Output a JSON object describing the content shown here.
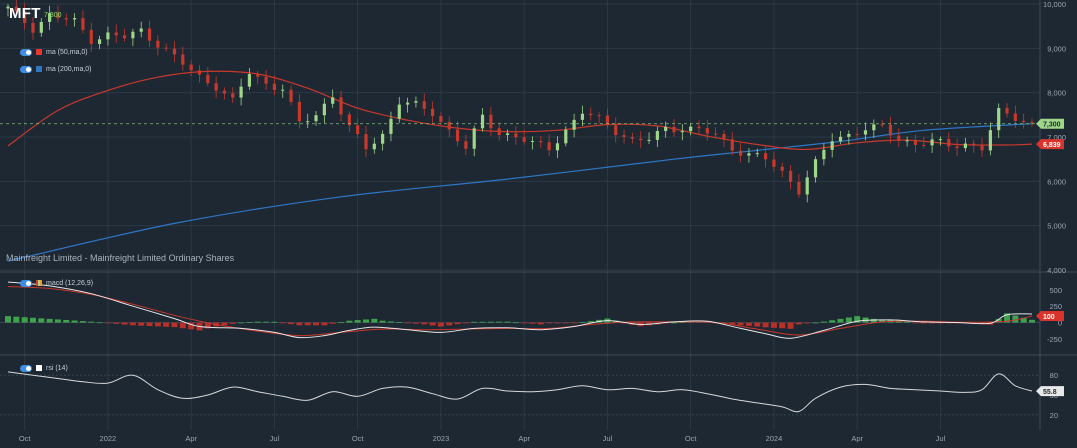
{
  "ticker": "MFT",
  "ticker_price": "7,300",
  "subtitle": "Mainfreight Limited - Mainfreight Limited Ordinary Shares",
  "indicators": {
    "ma50": {
      "label": "ma (50,ma,0)",
      "color": "#e8372e"
    },
    "ma200": {
      "label": "ma (200,ma,0)",
      "color": "#2f77c4"
    },
    "macd": {
      "label": "macd (12,26,9)"
    },
    "rsi": {
      "label": "rsi (14)"
    }
  },
  "colors": {
    "up": "#9fd687",
    "down": "#c8382b",
    "ma50": "#c8382b",
    "ma200": "#2f77c4"
  },
  "chart_data": [
    {
      "type": "candlestick",
      "title": "MFT",
      "x_tick_labels": [
        "Oct",
        "2022",
        "Apr",
        "Jul",
        "Oct",
        "2023",
        "Apr",
        "Jul",
        "Oct",
        "2024",
        "Apr",
        "Jul"
      ],
      "y_tick_labels": [
        "10,000",
        "9,000",
        "8,000",
        "7,000",
        "6,000",
        "5,000",
        "4,000"
      ],
      "ylim": [
        4000,
        10000
      ],
      "last_price_label": "7,300",
      "ma50_label": "6,839",
      "price_path": [
        [
          0,
          9900
        ],
        [
          3,
          9450
        ],
        [
          5,
          9750
        ],
        [
          8,
          9600
        ],
        [
          10,
          9200
        ],
        [
          12,
          9300
        ],
        [
          14,
          9250
        ],
        [
          16,
          9400
        ],
        [
          18,
          9100
        ],
        [
          21,
          8650
        ],
        [
          23,
          8350
        ],
        [
          25,
          8150
        ],
        [
          27,
          7800
        ],
        [
          29,
          8450
        ],
        [
          31,
          8200
        ],
        [
          33,
          8100
        ],
        [
          35,
          7300
        ],
        [
          37,
          7500
        ],
        [
          39,
          7950
        ],
        [
          41,
          7200
        ],
        [
          43,
          6750
        ],
        [
          45,
          7050
        ],
        [
          47,
          7800
        ],
        [
          49,
          7700
        ],
        [
          51,
          7550
        ],
        [
          53,
          7150
        ],
        [
          55,
          6750
        ],
        [
          57,
          7450
        ],
        [
          59,
          7100
        ],
        [
          61,
          7000
        ],
        [
          63,
          6850
        ],
        [
          65,
          6750
        ],
        [
          67,
          7150
        ],
        [
          69,
          7550
        ],
        [
          71,
          7400
        ],
        [
          73,
          7150
        ],
        [
          75,
          6900
        ],
        [
          77,
          6950
        ],
        [
          79,
          7200
        ],
        [
          81,
          7200
        ],
        [
          83,
          7150
        ],
        [
          85,
          7050
        ],
        [
          87,
          6750
        ],
        [
          89,
          6600
        ],
        [
          91,
          6500
        ],
        [
          93,
          6200
        ],
        [
          95,
          5800
        ],
        [
          97,
          6400
        ],
        [
          99,
          6950
        ],
        [
          101,
          7050
        ],
        [
          103,
          7200
        ],
        [
          105,
          7200
        ],
        [
          107,
          6950
        ],
        [
          109,
          6850
        ],
        [
          111,
          6900
        ],
        [
          113,
          6800
        ],
        [
          115,
          6850
        ],
        [
          117,
          6750
        ],
        [
          119,
          7550
        ],
        [
          121,
          7450
        ],
        [
          123,
          7300
        ]
      ],
      "ma50": [
        [
          0,
          6800
        ],
        [
          6,
          7600
        ],
        [
          12,
          8050
        ],
        [
          18,
          8350
        ],
        [
          24,
          8480
        ],
        [
          30,
          8420
        ],
        [
          36,
          8100
        ],
        [
          42,
          7650
        ],
        [
          48,
          7380
        ],
        [
          54,
          7200
        ],
        [
          60,
          7120
        ],
        [
          66,
          7150
        ],
        [
          72,
          7280
        ],
        [
          78,
          7250
        ],
        [
          84,
          7020
        ],
        [
          90,
          6830
        ],
        [
          96,
          6720
        ],
        [
          102,
          6870
        ],
        [
          108,
          6930
        ],
        [
          114,
          6830
        ],
        [
          120,
          6820
        ],
        [
          123,
          6839
        ]
      ],
      "ma200": [
        [
          0,
          4200
        ],
        [
          20,
          5050
        ],
        [
          40,
          5650
        ],
        [
          60,
          6050
        ],
        [
          80,
          6500
        ],
        [
          90,
          6700
        ],
        [
          100,
          6900
        ],
        [
          110,
          7150
        ],
        [
          123,
          7300
        ]
      ]
    },
    {
      "type": "bar",
      "title": "macd (12,26,9)",
      "y_tick_labels": [
        "500",
        "250",
        "0",
        "-250"
      ],
      "ylim": [
        -450,
        650
      ],
      "last_value_label": "100",
      "macd_line": [
        [
          0,
          620
        ],
        [
          5,
          560
        ],
        [
          10,
          440
        ],
        [
          15,
          250
        ],
        [
          20,
          60
        ],
        [
          23,
          -60
        ],
        [
          28,
          -90
        ],
        [
          32,
          -150
        ],
        [
          35,
          -230
        ],
        [
          38,
          -200
        ],
        [
          41,
          -120
        ],
        [
          44,
          -70
        ],
        [
          48,
          -110
        ],
        [
          52,
          -150
        ],
        [
          56,
          -90
        ],
        [
          60,
          -80
        ],
        [
          64,
          -110
        ],
        [
          68,
          -60
        ],
        [
          72,
          30
        ],
        [
          76,
          -30
        ],
        [
          80,
          10
        ],
        [
          84,
          20
        ],
        [
          88,
          -90
        ],
        [
          91,
          -170
        ],
        [
          94,
          -240
        ],
        [
          98,
          -120
        ],
        [
          102,
          20
        ],
        [
          106,
          40
        ],
        [
          110,
          10
        ],
        [
          114,
          0
        ],
        [
          118,
          -10
        ],
        [
          120,
          120
        ],
        [
          123,
          130
        ]
      ],
      "signal_line": [
        [
          0,
          550
        ],
        [
          5,
          520
        ],
        [
          10,
          430
        ],
        [
          15,
          280
        ],
        [
          20,
          110
        ],
        [
          25,
          -30
        ],
        [
          30,
          -130
        ],
        [
          35,
          -200
        ],
        [
          40,
          -150
        ],
        [
          45,
          -100
        ],
        [
          50,
          -110
        ],
        [
          55,
          -100
        ],
        [
          60,
          -90
        ],
        [
          65,
          -90
        ],
        [
          70,
          -30
        ],
        [
          75,
          10
        ],
        [
          80,
          10
        ],
        [
          85,
          0
        ],
        [
          90,
          -100
        ],
        [
          95,
          -190
        ],
        [
          100,
          -90
        ],
        [
          105,
          10
        ],
        [
          110,
          20
        ],
        [
          115,
          5
        ],
        [
          120,
          20
        ],
        [
          123,
          100
        ]
      ]
    },
    {
      "type": "line",
      "title": "rsi (14)",
      "y_tick_labels": [
        "80",
        "50",
        "20"
      ],
      "ylim": [
        0,
        100
      ],
      "last_value_label": "55.8",
      "rsi_line": [
        [
          0,
          85
        ],
        [
          3,
          80
        ],
        [
          6,
          75
        ],
        [
          9,
          70
        ],
        [
          12,
          68
        ],
        [
          15,
          80
        ],
        [
          18,
          58
        ],
        [
          21,
          45
        ],
        [
          24,
          50
        ],
        [
          27,
          62
        ],
        [
          30,
          55
        ],
        [
          33,
          48
        ],
        [
          36,
          42
        ],
        [
          39,
          55
        ],
        [
          42,
          48
        ],
        [
          45,
          60
        ],
        [
          48,
          62
        ],
        [
          51,
          52
        ],
        [
          54,
          44
        ],
        [
          57,
          60
        ],
        [
          60,
          56
        ],
        [
          63,
          55
        ],
        [
          66,
          58
        ],
        [
          69,
          64
        ],
        [
          72,
          58
        ],
        [
          75,
          60
        ],
        [
          78,
          55
        ],
        [
          81,
          58
        ],
        [
          84,
          52
        ],
        [
          87,
          44
        ],
        [
          90,
          38
        ],
        [
          93,
          32
        ],
        [
          95,
          25
        ],
        [
          97,
          45
        ],
        [
          100,
          62
        ],
        [
          103,
          66
        ],
        [
          106,
          60
        ],
        [
          109,
          58
        ],
        [
          112,
          56
        ],
        [
          115,
          54
        ],
        [
          117,
          58
        ],
        [
          119,
          82
        ],
        [
          121,
          64
        ],
        [
          123,
          56
        ]
      ]
    }
  ]
}
